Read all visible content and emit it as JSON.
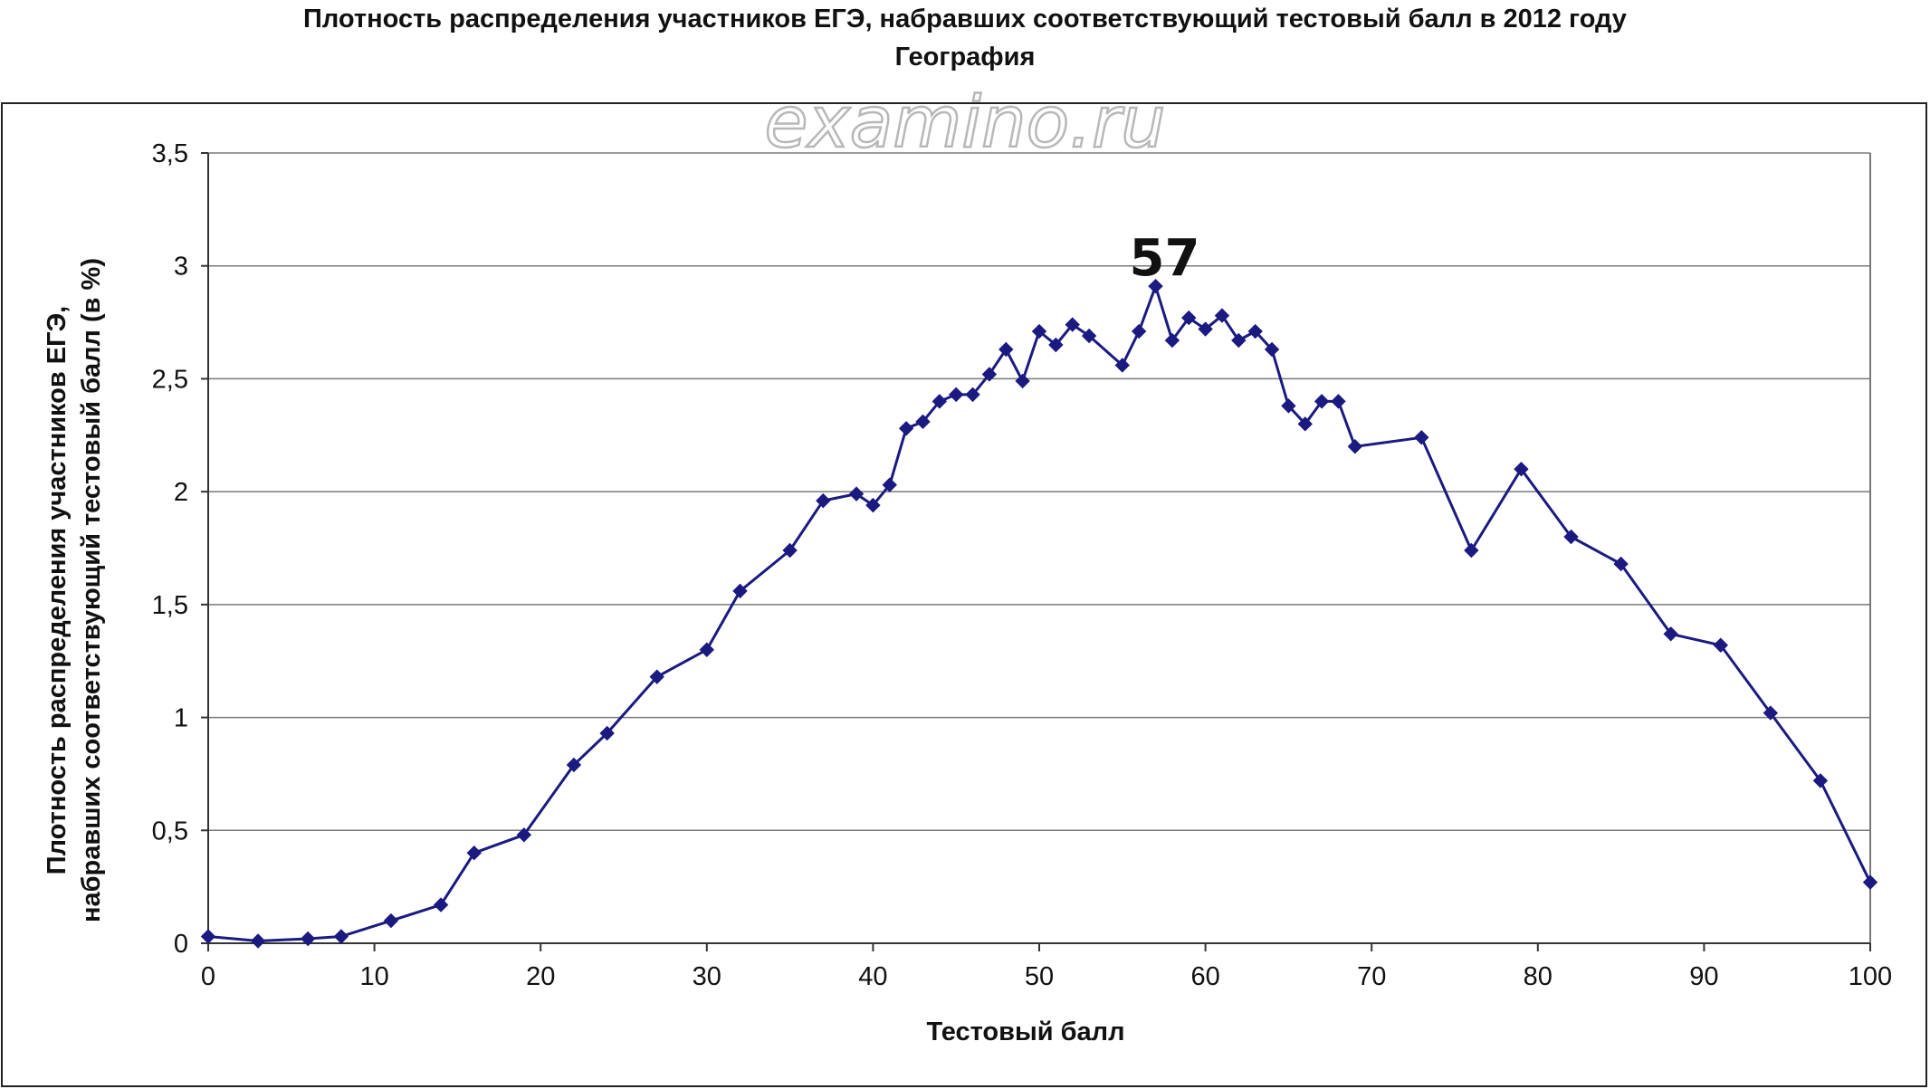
{
  "chart_data": {
    "type": "line",
    "title": "Плотность распределения участников ЕГЭ, набравших соответствующий тестовый балл в 2012 году",
    "subtitle": "География",
    "xlabel": "Тестовый балл",
    "ylabel_lines": [
      "Плотность распределения участников ЕГЭ,",
      "набравших соответствующий тестовый балл (в %)"
    ],
    "xlim": [
      0,
      100
    ],
    "ylim": [
      0,
      3.5
    ],
    "x_ticks": [
      "0",
      "10",
      "20",
      "30",
      "40",
      "50",
      "60",
      "70",
      "80",
      "90",
      "100"
    ],
    "y_ticks": [
      "0",
      "0,5",
      "1",
      "1,5",
      "2",
      "2,5",
      "3",
      "3,5"
    ],
    "grid": true,
    "series_color": "#1a1a80",
    "marker": "diamond",
    "annotation": "57",
    "x": [
      0,
      3,
      6,
      8,
      11,
      14,
      16,
      19,
      22,
      24,
      27,
      30,
      32,
      35,
      37,
      39,
      40,
      41,
      42,
      43,
      44,
      45,
      46,
      47,
      48,
      49,
      50,
      51,
      52,
      53,
      55,
      56,
      57,
      58,
      59,
      60,
      61,
      62,
      63,
      64,
      65,
      66,
      67,
      68,
      69,
      73,
      76,
      79,
      82,
      85,
      88,
      91,
      94,
      97,
      100
    ],
    "y": [
      0.03,
      0.01,
      0.02,
      0.03,
      0.1,
      0.17,
      0.4,
      0.48,
      0.79,
      0.93,
      1.18,
      1.3,
      1.56,
      1.74,
      1.96,
      1.99,
      1.94,
      2.03,
      2.28,
      2.31,
      2.4,
      2.43,
      2.43,
      2.52,
      2.63,
      2.49,
      2.71,
      2.65,
      2.74,
      2.69,
      2.56,
      2.71,
      2.91,
      2.67,
      2.77,
      2.72,
      2.78,
      2.67,
      2.71,
      2.63,
      2.38,
      2.3,
      2.4,
      2.4,
      2.2,
      2.24,
      1.74,
      2.1,
      1.8,
      1.68,
      1.37,
      1.32,
      1.02,
      0.72,
      0.27
    ]
  },
  "watermark": "examino.ru"
}
